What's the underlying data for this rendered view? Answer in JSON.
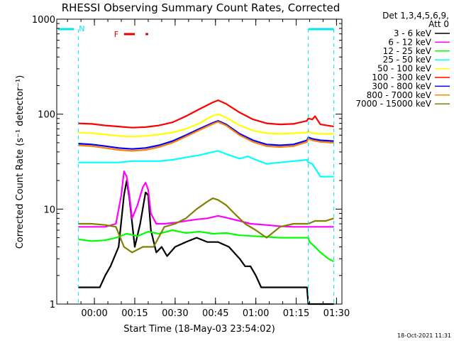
{
  "chart_data": {
    "type": "line",
    "title": "RHESSI Observing Summary Count Rates, Corrected",
    "xlabel": "Start Time (18-May-03 23:54:02)",
    "ylabel": "Corrected Count Rate (s⁻¹ detector⁻¹)",
    "x_unit": "minutes after start",
    "xlim": [
      -8,
      98
    ],
    "ylim": [
      1,
      1000
    ],
    "yscale": "log",
    "x_ticks": [
      {
        "x": 6,
        "label": "00:00"
      },
      {
        "x": 21,
        "label": "00:15"
      },
      {
        "x": 36,
        "label": "00:30"
      },
      {
        "x": 51,
        "label": "00:45"
      },
      {
        "x": 66,
        "label": "01:00"
      },
      {
        "x": 81,
        "label": "01:15"
      },
      {
        "x": 96,
        "label": "01:30"
      }
    ],
    "y_ticks": [
      {
        "y": 1,
        "label": "1"
      },
      {
        "y": 10,
        "label": "10"
      },
      {
        "y": 100,
        "label": "100"
      },
      {
        "y": 1000,
        "label": "1000"
      }
    ],
    "legend": {
      "header": [
        "Det 1,3,4,5,6,9,",
        "Att 0"
      ],
      "placement": "right"
    },
    "annotations": {
      "night_marker": "N",
      "flare_marker": "F",
      "night_boundaries": [
        0,
        85.5,
        95
      ],
      "flare_bars": [
        [
          17,
          21
        ],
        [
          25,
          26
        ]
      ]
    },
    "series": [
      {
        "name": "3 - 6 keV",
        "color": "#000000",
        "x": [
          0,
          8,
          10,
          12,
          15,
          17,
          18,
          19,
          21,
          23,
          25,
          26,
          27,
          29,
          31,
          33,
          36,
          40,
          44,
          48,
          52,
          56,
          60,
          62,
          64,
          66,
          68,
          70,
          75,
          80,
          85,
          85.5,
          90,
          95
        ],
        "y": [
          1.5,
          1.5,
          2,
          2.5,
          4,
          14,
          20,
          13,
          4,
          7,
          15,
          14,
          6,
          3.5,
          4,
          3.2,
          4,
          4.5,
          5,
          4.5,
          4.5,
          4,
          3,
          2.5,
          2.5,
          2,
          1.5,
          1.5,
          1.5,
          1.5,
          1.5,
          1,
          1,
          1
        ]
      },
      {
        "name": "6 - 12 keV",
        "color": "#ff00ff",
        "x": [
          0,
          10,
          14,
          16,
          17,
          18,
          19,
          20,
          22,
          24,
          25,
          26,
          27,
          29,
          32,
          36,
          40,
          44,
          48,
          52,
          56,
          60,
          64,
          70,
          75,
          80,
          85,
          85.5,
          95
        ],
        "y": [
          6.5,
          6.5,
          7,
          14,
          25,
          22,
          14,
          8,
          11,
          17,
          19,
          16,
          9,
          7,
          7,
          7.2,
          7.5,
          7.8,
          8,
          8.5,
          8,
          7.5,
          7,
          6.8,
          6.6,
          6.5,
          6.5,
          6.5,
          6.5
        ]
      },
      {
        "name": "12 - 25 keV",
        "color": "#00ff00",
        "x": [
          0,
          5,
          10,
          14,
          18,
          22,
          26,
          30,
          35,
          40,
          45,
          50,
          55,
          60,
          65,
          70,
          75,
          80,
          85,
          85.5,
          86,
          88,
          90,
          93,
          95
        ],
        "y": [
          4.8,
          4.6,
          4.7,
          5,
          5.5,
          5.2,
          5.8,
          5.5,
          6,
          5.6,
          5.8,
          5.5,
          5.6,
          5.3,
          5.2,
          5.1,
          5,
          5,
          5,
          5,
          4.5,
          4,
          3.5,
          3,
          2.8
        ]
      },
      {
        "name": "25 - 50 keV",
        "color": "#00ffff",
        "x": [
          0,
          5,
          10,
          15,
          20,
          25,
          30,
          35,
          40,
          45,
          50,
          52,
          55,
          60,
          63,
          66,
          70,
          75,
          80,
          85,
          85.5,
          87,
          90,
          93,
          95
        ],
        "y": [
          31,
          31,
          31,
          31,
          32,
          32,
          32,
          33,
          35,
          37,
          40,
          41,
          38,
          34,
          36,
          33,
          30,
          31,
          32,
          33,
          31,
          30,
          22,
          22,
          22
        ]
      },
      {
        "name": "50 - 100 keV",
        "color": "#ffff00",
        "x": [
          0,
          5,
          10,
          15,
          20,
          25,
          30,
          35,
          40,
          45,
          50,
          52,
          55,
          60,
          65,
          70,
          75,
          80,
          85,
          85.5,
          87,
          90,
          95
        ],
        "y": [
          64,
          63,
          61,
          59,
          58,
          59,
          61,
          64,
          70,
          80,
          96,
          100,
          92,
          76,
          67,
          63,
          62,
          63,
          64,
          66,
          63,
          62,
          62
        ]
      },
      {
        "name": "100 - 300 keV",
        "color": "#ff0000",
        "x": [
          0,
          5,
          10,
          15,
          20,
          25,
          30,
          35,
          40,
          45,
          50,
          52,
          55,
          60,
          65,
          70,
          75,
          80,
          85,
          85.5,
          87,
          88,
          90,
          95
        ],
        "y": [
          80,
          79,
          76,
          74,
          72,
          73,
          76,
          82,
          95,
          113,
          133,
          140,
          128,
          104,
          88,
          80,
          78,
          79,
          85,
          90,
          88,
          95,
          78,
          74
        ]
      },
      {
        "name": "300 - 800 keV",
        "color": "#0000ff",
        "x": [
          0,
          5,
          10,
          15,
          20,
          25,
          30,
          35,
          40,
          45,
          50,
          52,
          55,
          60,
          65,
          70,
          75,
          80,
          85,
          85.5,
          87,
          90,
          95
        ],
        "y": [
          49,
          48,
          46,
          44,
          43,
          44,
          47,
          52,
          60,
          70,
          81,
          85,
          78,
          62,
          53,
          48,
          47,
          48,
          53,
          57,
          55,
          53,
          52
        ]
      },
      {
        "name": "800 - 7000 keV",
        "color": "#ff8000",
        "x": [
          0,
          5,
          10,
          15,
          20,
          25,
          30,
          35,
          40,
          45,
          50,
          52,
          55,
          60,
          65,
          70,
          75,
          80,
          85,
          85.5,
          87,
          90,
          95
        ],
        "y": [
          47,
          46,
          44,
          42,
          41,
          42,
          45,
          50,
          58,
          68,
          79,
          83,
          76,
          60,
          51,
          46,
          45,
          46,
          51,
          55,
          53,
          51,
          50
        ]
      },
      {
        "name": "7000 - 15000 keV",
        "color": "#808000",
        "x": [
          0,
          5,
          10,
          14,
          17,
          20,
          24,
          28,
          32,
          36,
          40,
          44,
          48,
          50,
          52,
          55,
          58,
          62,
          66,
          70,
          75,
          80,
          85,
          85.5,
          88,
          92,
          95
        ],
        "y": [
          7,
          7,
          6.8,
          6.5,
          4,
          3.5,
          4,
          4,
          6.5,
          7,
          8,
          10,
          12,
          13,
          12.5,
          11,
          9,
          7,
          6,
          5,
          6.5,
          7,
          7,
          7,
          7.5,
          7.5,
          8
        ]
      }
    ]
  },
  "footer": {
    "timestamp": "18-Oct-2021 11:31"
  }
}
